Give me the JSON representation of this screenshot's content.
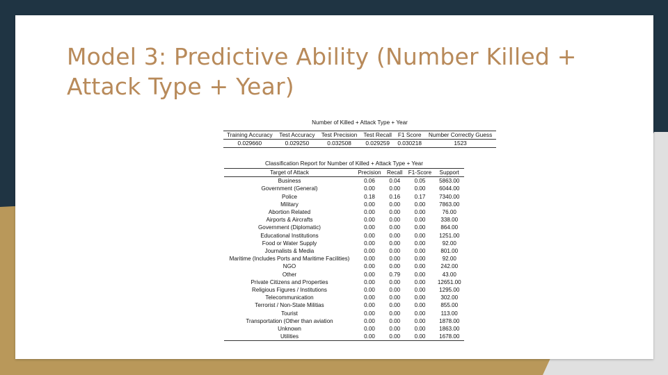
{
  "slide": {
    "title": "Model 3: Predictive Ability (Number Killed + Attack Type + Year)",
    "colors": {
      "dark_bg": "#1f3443",
      "gold": "#b9985a",
      "title": "#b88a5a",
      "light_gray": "#e0e0e0"
    }
  },
  "summary_table": {
    "caption": "Number of Killed + Attack Type + Year",
    "headers": [
      "Training Accuracy",
      "Test Accuracy",
      "Test Precision",
      "Test Recall",
      "F1 Score",
      "Number Correctly Guess"
    ],
    "row": [
      "0.029660",
      "0.029250",
      "0.032508",
      "0.029259",
      "0.030218",
      "1523"
    ]
  },
  "report_table": {
    "caption": "Classification Report for Number of Killed + Attack Type + Year",
    "headers": [
      "Target of Attack",
      "Precision",
      "Recall",
      "F1-Score",
      "Support"
    ],
    "rows": [
      [
        "Business",
        "0.06",
        "0.04",
        "0.05",
        "5863.00"
      ],
      [
        "Government (General)",
        "0.00",
        "0.00",
        "0.00",
        "6044.00"
      ],
      [
        "Police",
        "0.18",
        "0.16",
        "0.17",
        "7340.00"
      ],
      [
        "Military",
        "0.00",
        "0.00",
        "0.00",
        "7863.00"
      ],
      [
        "Abortion Related",
        "0.00",
        "0.00",
        "0.00",
        "76.00"
      ],
      [
        "Airports & Aircrafts",
        "0.00",
        "0.00",
        "0.00",
        "338.00"
      ],
      [
        "Government (Diplomatic)",
        "0.00",
        "0.00",
        "0.00",
        "864.00"
      ],
      [
        "Educational Institutions",
        "0.00",
        "0.00",
        "0.00",
        "1251.00"
      ],
      [
        "Food or Water Supply",
        "0.00",
        "0.00",
        "0.00",
        "92.00"
      ],
      [
        "Journalists & Media",
        "0.00",
        "0.00",
        "0.00",
        "801.00"
      ],
      [
        "Maritime (Includes Ports and Maritime Facilities)",
        "0.00",
        "0.00",
        "0.00",
        "92.00"
      ],
      [
        "NGO",
        "0.00",
        "0.00",
        "0.00",
        "242.00"
      ],
      [
        "Other",
        "0.00",
        "0.79",
        "0.00",
        "43.00"
      ],
      [
        "Private Citizens and Properties",
        "0.00",
        "0.00",
        "0.00",
        "12651.00"
      ],
      [
        "Religious Figures / Institutions",
        "0.00",
        "0.00",
        "0.00",
        "1295.00"
      ],
      [
        "Telecommunication",
        "0.00",
        "0.00",
        "0.00",
        "302.00"
      ],
      [
        "Terrorist / Non-State Militias",
        "0.00",
        "0.00",
        "0.00",
        "855.00"
      ],
      [
        "Tourist",
        "0.00",
        "0.00",
        "0.00",
        "113.00"
      ],
      [
        "Transportation (Other than aviation",
        "0.00",
        "0.00",
        "0.00",
        "1878.00"
      ],
      [
        "Unknown",
        "0.00",
        "0.00",
        "0.00",
        "1863.00"
      ],
      [
        "Utilities",
        "0.00",
        "0.00",
        "0.00",
        "1678.00"
      ]
    ]
  }
}
